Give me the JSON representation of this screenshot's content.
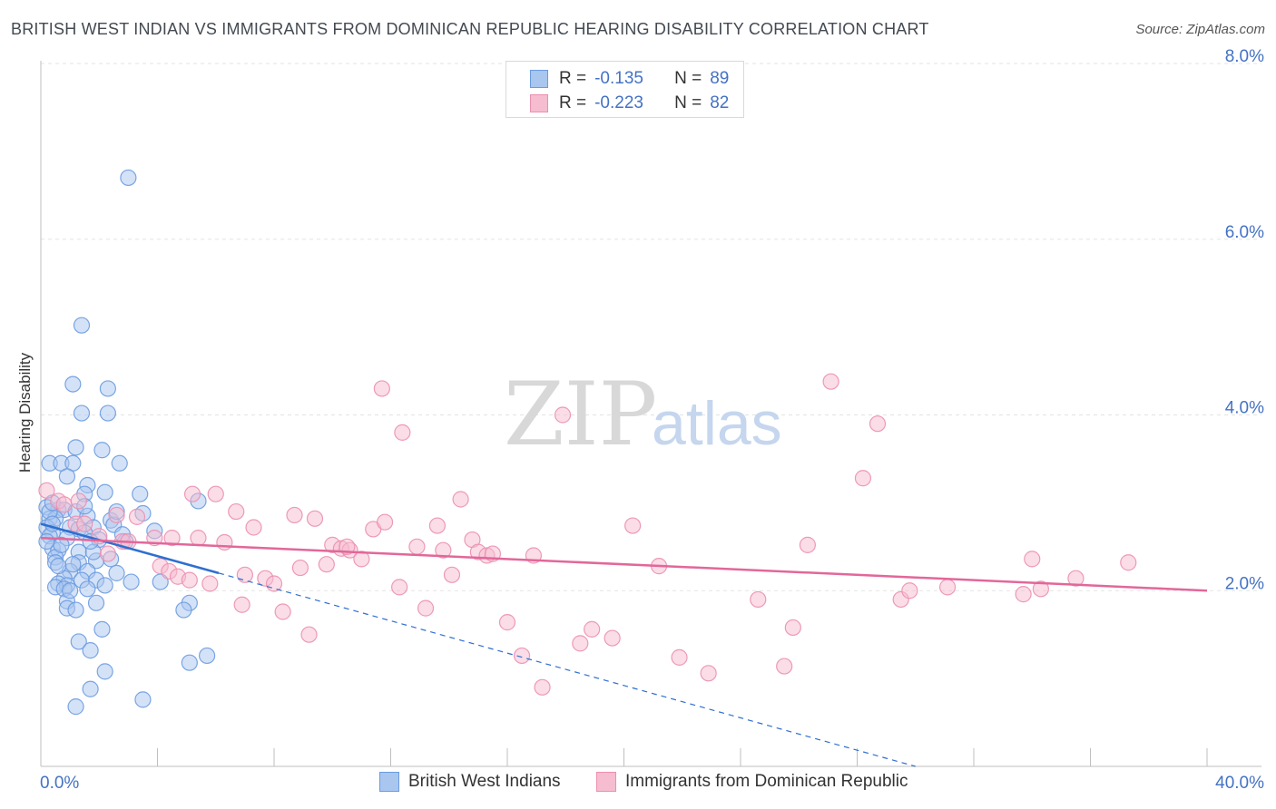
{
  "header": {
    "title": "BRITISH WEST INDIAN VS IMMIGRANTS FROM DOMINICAN REPUBLIC HEARING DISABILITY CORRELATION CHART",
    "source": "Source: ZipAtlas.com"
  },
  "watermark": {
    "zip": "ZIP",
    "atlas": "atlas"
  },
  "legend": {
    "rows": [
      {
        "r_label": "R =",
        "r_value": "-0.135",
        "n_label": "N =",
        "n_value": "89"
      },
      {
        "r_label": "R =",
        "r_value": "-0.223",
        "n_label": "N =",
        "n_value": "82"
      }
    ]
  },
  "colors": {
    "blue_fill": "#a9c6ef",
    "blue_stroke": "#6b9be0",
    "blue_line": "#2e6fd0",
    "pink_fill": "#f6bcd0",
    "pink_stroke": "#ec8fb0",
    "pink_line": "#e2679a",
    "tick_text": "#4472c4",
    "grid": "#e3e3e3"
  },
  "chart_data": {
    "type": "scatter",
    "ylabel": "Hearing Disability",
    "x_ticks": [
      "0.0%",
      "40.0%"
    ],
    "y_ticks": [
      "2.0%",
      "4.0%",
      "6.0%",
      "8.0%"
    ],
    "xlim": [
      0,
      40
    ],
    "ylim": [
      0,
      8
    ],
    "grid": true,
    "legend_position": "bottom",
    "series": [
      {
        "name": "British West Indians",
        "regression": {
          "x0": 0,
          "y0": 2.76,
          "x1": 6.1,
          "y1": 2.2,
          "dashed_to_x": 30,
          "dashed_to_y": 0
        },
        "points": [
          [
            3.0,
            6.7
          ],
          [
            1.4,
            5.02
          ],
          [
            1.1,
            4.35
          ],
          [
            2.3,
            4.3
          ],
          [
            1.4,
            4.02
          ],
          [
            2.3,
            4.02
          ],
          [
            1.2,
            3.63
          ],
          [
            2.1,
            3.6
          ],
          [
            0.3,
            3.45
          ],
          [
            0.7,
            3.45
          ],
          [
            1.1,
            3.45
          ],
          [
            2.7,
            3.45
          ],
          [
            0.9,
            3.3
          ],
          [
            1.6,
            3.2
          ],
          [
            1.5,
            3.1
          ],
          [
            2.2,
            3.12
          ],
          [
            3.4,
            3.1
          ],
          [
            0.2,
            2.95
          ],
          [
            0.6,
            2.92
          ],
          [
            0.8,
            2.92
          ],
          [
            1.2,
            2.9
          ],
          [
            3.5,
            2.88
          ],
          [
            0.3,
            2.82
          ],
          [
            0.5,
            2.82
          ],
          [
            1.6,
            2.85
          ],
          [
            2.4,
            2.8
          ],
          [
            0.2,
            2.72
          ],
          [
            1.0,
            2.72
          ],
          [
            1.8,
            2.72
          ],
          [
            2.5,
            2.75
          ],
          [
            0.4,
            2.66
          ],
          [
            1.3,
            2.7
          ],
          [
            1.5,
            2.66
          ],
          [
            3.9,
            2.68
          ],
          [
            0.3,
            2.62
          ],
          [
            0.9,
            2.6
          ],
          [
            2.0,
            2.58
          ],
          [
            2.9,
            2.56
          ],
          [
            0.4,
            2.48
          ],
          [
            0.6,
            2.46
          ],
          [
            1.3,
            2.44
          ],
          [
            0.5,
            2.38
          ],
          [
            1.9,
            2.34
          ],
          [
            0.5,
            2.32
          ],
          [
            1.3,
            2.32
          ],
          [
            2.4,
            2.36
          ],
          [
            1.0,
            2.22
          ],
          [
            1.6,
            2.22
          ],
          [
            0.8,
            2.14
          ],
          [
            1.4,
            2.12
          ],
          [
            2.6,
            2.2
          ],
          [
            0.6,
            2.08
          ],
          [
            0.9,
            2.06
          ],
          [
            1.9,
            2.12
          ],
          [
            3.1,
            2.1
          ],
          [
            4.1,
            2.1
          ],
          [
            0.5,
            2.04
          ],
          [
            0.8,
            2.02
          ],
          [
            1.6,
            2.02
          ],
          [
            0.9,
            1.88
          ],
          [
            1.9,
            1.86
          ],
          [
            5.1,
            1.86
          ],
          [
            0.9,
            1.8
          ],
          [
            1.2,
            1.78
          ],
          [
            4.9,
            1.78
          ],
          [
            2.1,
            1.56
          ],
          [
            1.3,
            1.42
          ],
          [
            1.7,
            1.32
          ],
          [
            5.7,
            1.26
          ],
          [
            5.1,
            1.18
          ],
          [
            2.2,
            1.08
          ],
          [
            1.7,
            0.88
          ],
          [
            3.5,
            0.76
          ],
          [
            1.2,
            0.68
          ],
          [
            0.3,
            2.9
          ],
          [
            0.4,
            2.76
          ],
          [
            0.7,
            2.52
          ],
          [
            1.1,
            2.3
          ],
          [
            1.5,
            2.96
          ],
          [
            2.8,
            2.64
          ],
          [
            0.6,
            2.28
          ],
          [
            1.8,
            2.44
          ],
          [
            0.2,
            2.56
          ],
          [
            1.0,
            2.0
          ],
          [
            2.2,
            2.06
          ],
          [
            0.4,
            3.0
          ],
          [
            1.7,
            2.56
          ],
          [
            2.6,
            2.9
          ],
          [
            5.4,
            3.02
          ]
        ]
      },
      {
        "name": "Immigrants from Dominican Republic",
        "regression": {
          "x0": 0,
          "y0": 2.6,
          "x1": 40,
          "y1": 2.0
        },
        "points": [
          [
            0.2,
            3.14
          ],
          [
            0.6,
            3.02
          ],
          [
            0.8,
            2.98
          ],
          [
            1.2,
            2.76
          ],
          [
            1.5,
            2.76
          ],
          [
            2.0,
            2.62
          ],
          [
            2.3,
            2.42
          ],
          [
            2.6,
            2.86
          ],
          [
            2.8,
            2.56
          ],
          [
            3.3,
            2.84
          ],
          [
            3.9,
            2.6
          ],
          [
            4.1,
            2.28
          ],
          [
            4.4,
            2.22
          ],
          [
            4.7,
            2.16
          ],
          [
            5.1,
            2.12
          ],
          [
            5.2,
            3.1
          ],
          [
            5.4,
            2.6
          ],
          [
            5.8,
            2.08
          ],
          [
            6.0,
            3.1
          ],
          [
            6.3,
            2.55
          ],
          [
            6.7,
            2.9
          ],
          [
            7.0,
            2.18
          ],
          [
            7.3,
            2.72
          ],
          [
            7.7,
            2.14
          ],
          [
            8.0,
            2.08
          ],
          [
            8.3,
            1.76
          ],
          [
            8.7,
            2.86
          ],
          [
            8.9,
            2.26
          ],
          [
            9.2,
            1.5
          ],
          [
            9.4,
            2.82
          ],
          [
            9.8,
            2.3
          ],
          [
            10.0,
            2.52
          ],
          [
            10.3,
            2.48
          ],
          [
            10.6,
            2.46
          ],
          [
            11.0,
            2.36
          ],
          [
            11.4,
            2.7
          ],
          [
            11.7,
            4.3
          ],
          [
            11.8,
            2.78
          ],
          [
            12.3,
            2.04
          ],
          [
            12.4,
            3.8
          ],
          [
            12.9,
            2.5
          ],
          [
            13.2,
            1.8
          ],
          [
            13.6,
            2.74
          ],
          [
            13.8,
            2.46
          ],
          [
            14.1,
            2.18
          ],
          [
            14.4,
            3.04
          ],
          [
            14.8,
            2.58
          ],
          [
            15.0,
            2.44
          ],
          [
            15.3,
            2.4
          ],
          [
            15.5,
            2.42
          ],
          [
            16.0,
            1.64
          ],
          [
            16.5,
            1.26
          ],
          [
            16.9,
            2.4
          ],
          [
            17.2,
            0.9
          ],
          [
            17.9,
            4.0
          ],
          [
            18.5,
            1.4
          ],
          [
            18.9,
            1.56
          ],
          [
            19.6,
            1.46
          ],
          [
            20.3,
            2.74
          ],
          [
            21.2,
            2.28
          ],
          [
            21.9,
            1.24
          ],
          [
            22.9,
            1.06
          ],
          [
            24.6,
            1.9
          ],
          [
            25.5,
            1.14
          ],
          [
            25.8,
            1.58
          ],
          [
            26.3,
            2.52
          ],
          [
            27.1,
            4.38
          ],
          [
            28.2,
            3.28
          ],
          [
            28.7,
            3.9
          ],
          [
            29.5,
            1.9
          ],
          [
            29.8,
            2.0
          ],
          [
            31.1,
            2.04
          ],
          [
            33.7,
            1.96
          ],
          [
            34.0,
            2.36
          ],
          [
            34.3,
            2.02
          ],
          [
            35.5,
            2.14
          ],
          [
            37.3,
            2.32
          ],
          [
            1.3,
            3.02
          ],
          [
            3.0,
            2.56
          ],
          [
            4.5,
            2.6
          ],
          [
            6.9,
            1.84
          ],
          [
            10.5,
            2.5
          ]
        ]
      }
    ]
  }
}
